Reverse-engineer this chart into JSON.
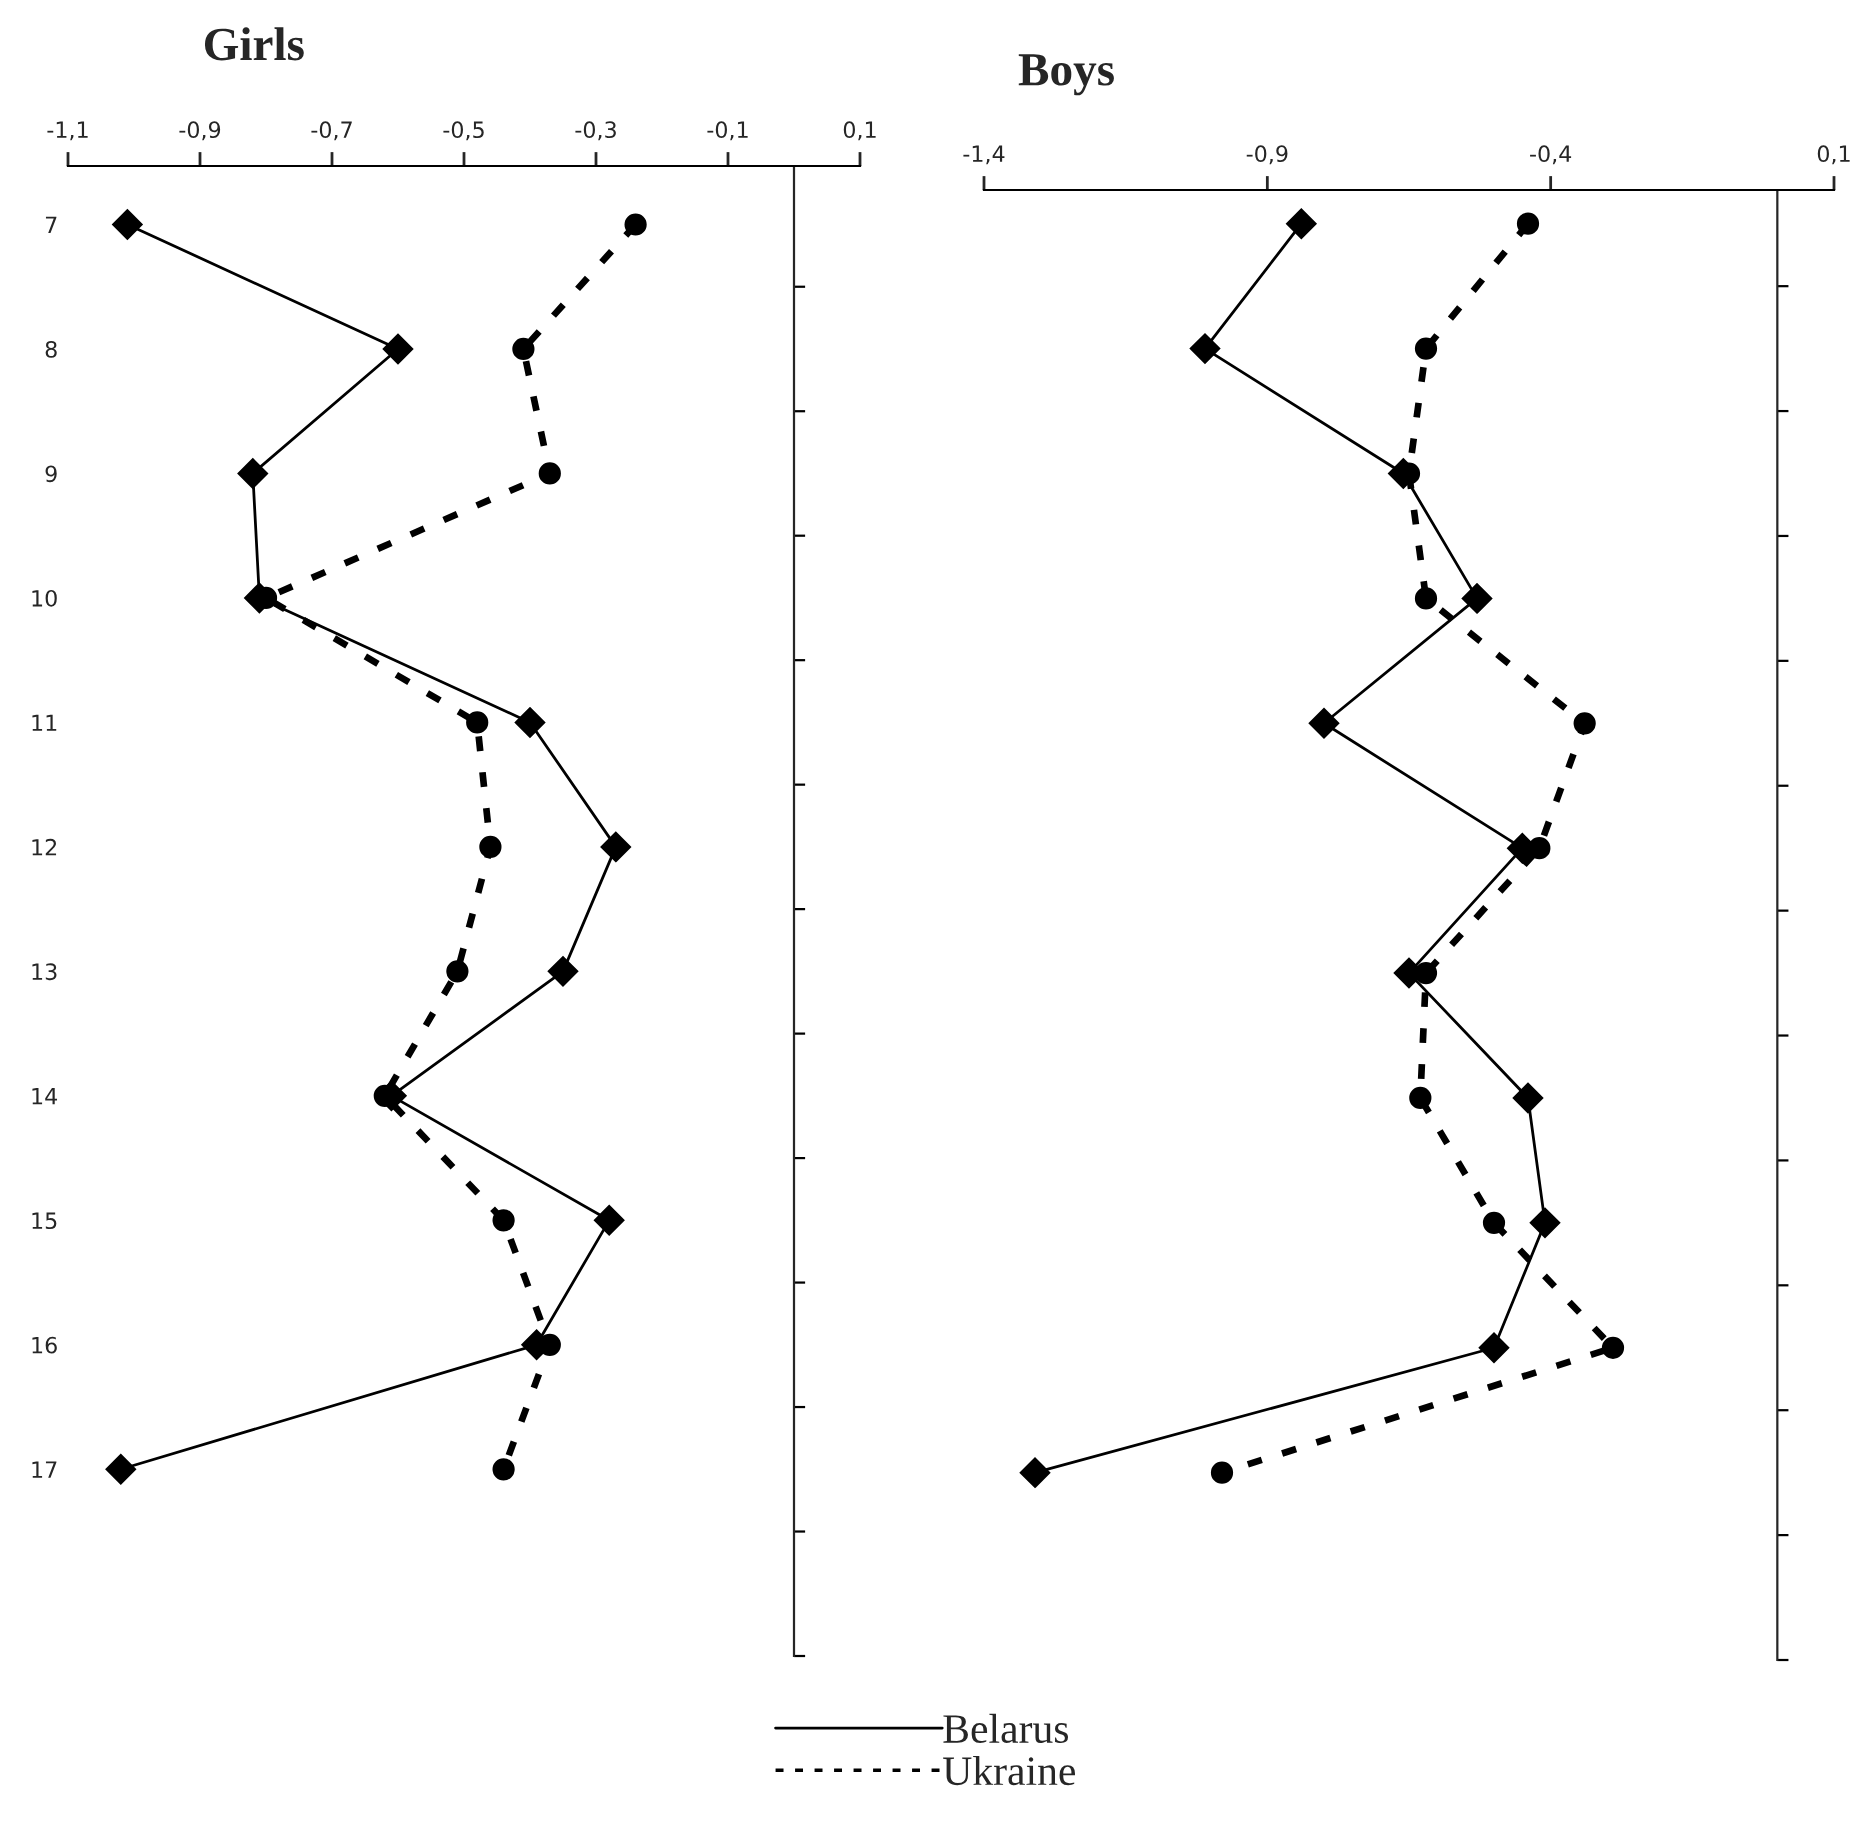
{
  "chart_data": [
    {
      "type": "line",
      "title": "Girls",
      "orientation": "horizontal",
      "categories": [
        "7",
        "8",
        "9",
        "10",
        "11",
        "12",
        "13",
        "14",
        "15",
        "16",
        "17"
      ],
      "xlim": [
        -1.1,
        0.1
      ],
      "xticks": [
        {
          "value": -1.1,
          "label": "-1,1"
        },
        {
          "value": -0.9,
          "label": "-0,9"
        },
        {
          "value": -0.7,
          "label": "-0,7"
        },
        {
          "value": -0.5,
          "label": "-0,5"
        },
        {
          "value": -0.3,
          "label": "-0,3"
        },
        {
          "value": -0.1,
          "label": "-0,1"
        },
        {
          "value": 0.1,
          "label": "0,1"
        }
      ],
      "ref_lines": [
        {
          "axis": "x",
          "value": 0
        }
      ],
      "grid": false,
      "legend": "bottom",
      "series": [
        {
          "name": "Belarus",
          "color": "#000000",
          "marker": "diamond",
          "line_style": "solid",
          "values": [
            -1.01,
            -0.6,
            -0.82,
            -0.81,
            -0.4,
            -0.27,
            -0.35,
            -0.61,
            -0.28,
            -0.39,
            -1.02
          ]
        },
        {
          "name": "Ukraine",
          "color": "#000000",
          "marker": "circle",
          "line_style": "dashed",
          "values": [
            -0.24,
            -0.41,
            -0.37,
            -0.8,
            -0.48,
            -0.46,
            -0.51,
            -0.62,
            -0.44,
            -0.37,
            -0.44
          ]
        }
      ]
    },
    {
      "type": "line",
      "title": "Boys",
      "orientation": "horizontal",
      "categories": [
        null,
        null,
        null,
        null,
        null,
        null,
        null,
        null,
        null,
        null,
        null
      ],
      "xlim": [
        -1.4,
        0.1
      ],
      "xticks": [
        {
          "value": -1.4,
          "label": "-1,4"
        },
        {
          "value": -0.9,
          "label": "-0,9"
        },
        {
          "value": -0.4,
          "label": "-0,4"
        },
        {
          "value": 0.1,
          "label": "0,1"
        }
      ],
      "ref_lines": [
        {
          "axis": "x",
          "value": 0
        }
      ],
      "grid": false,
      "tick_labels": "x",
      "series": [
        {
          "name": "Belarus",
          "color": "#000000",
          "marker": "diamond",
          "line_style": "solid",
          "values": [
            -0.84,
            -1.01,
            -0.66,
            -0.53,
            -0.8,
            -0.45,
            -0.65,
            -0.44,
            -0.41,
            -0.5,
            -1.31
          ]
        },
        {
          "name": "Ukraine",
          "color": "#000000",
          "marker": "circle",
          "line_style": "dashed",
          "values": [
            -0.44,
            -0.62,
            -0.65,
            -0.62,
            -0.34,
            -0.42,
            -0.62,
            -0.63,
            -0.5,
            -0.29,
            -0.98
          ]
        }
      ]
    }
  ]
}
